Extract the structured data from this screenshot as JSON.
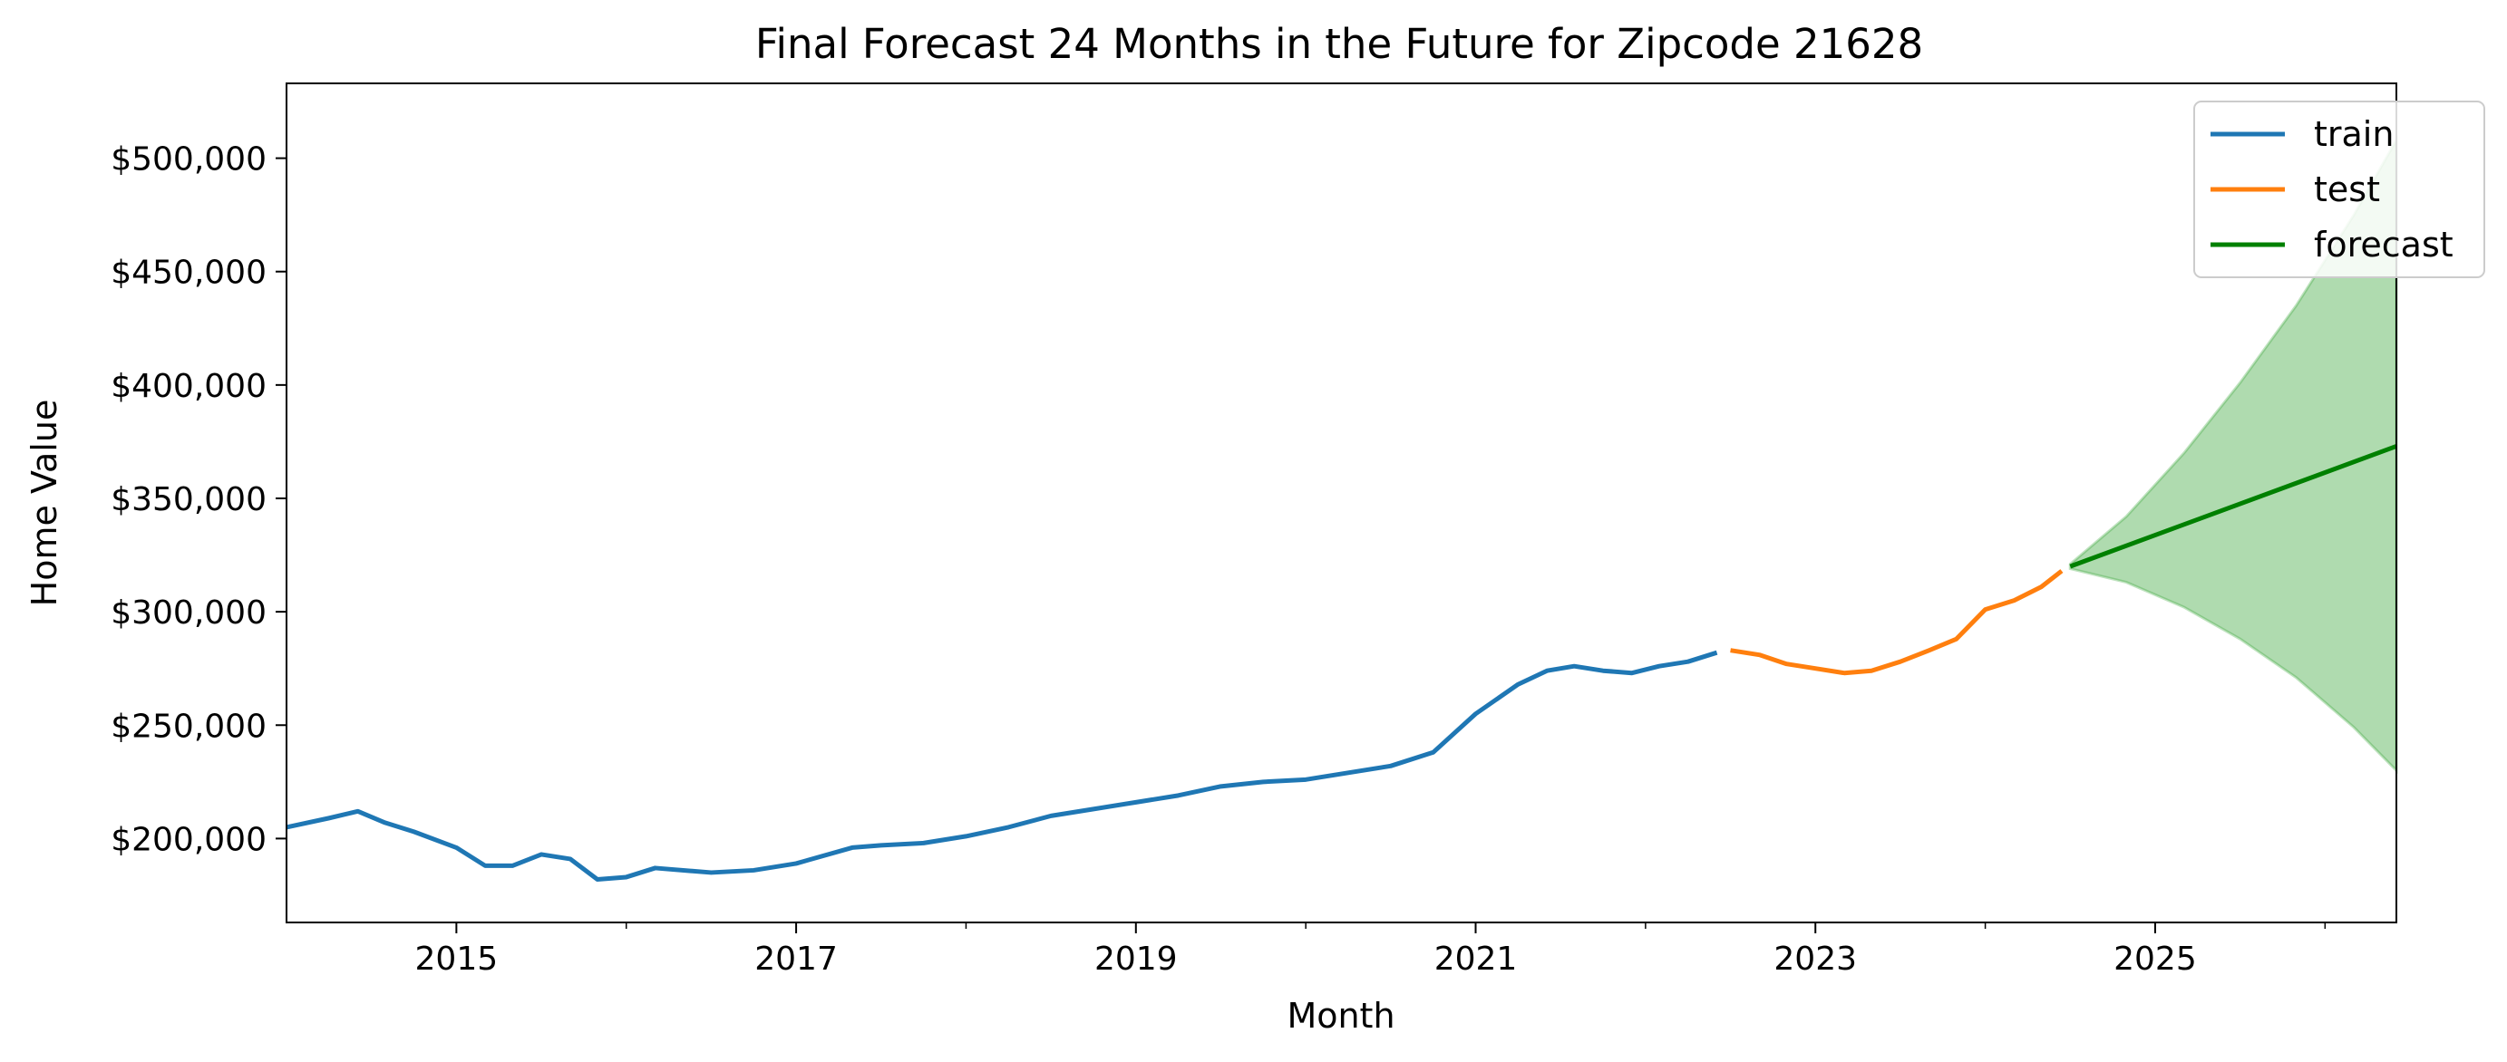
{
  "chart_data": {
    "type": "line",
    "title": "Final Forecast 24 Months in the Future for Zipcode 21628",
    "xlabel": "Month",
    "ylabel": "Home Value",
    "xlim": [
      2014.0,
      2026.42
    ],
    "ylim": [
      163000,
      533000
    ],
    "x_ticks": [
      {
        "value": 2015,
        "label": "2015"
      },
      {
        "value": 2017,
        "label": "2017"
      },
      {
        "value": 2019,
        "label": "2019"
      },
      {
        "value": 2021,
        "label": "2021"
      },
      {
        "value": 2023,
        "label": "2023"
      },
      {
        "value": 2025,
        "label": "2025"
      }
    ],
    "x_minor_ticks": [
      2016,
      2018,
      2020,
      2022,
      2024,
      2026
    ],
    "y_ticks": [
      {
        "value": 200000,
        "label": "$200,000"
      },
      {
        "value": 250000,
        "label": "$250,000"
      },
      {
        "value": 300000,
        "label": "$300,000"
      },
      {
        "value": 350000,
        "label": "$350,000"
      },
      {
        "value": 400000,
        "label": "$400,000"
      },
      {
        "value": 450000,
        "label": "$450,000"
      },
      {
        "value": 500000,
        "label": "$500,000"
      }
    ],
    "grid": false,
    "legend_position": "top-right",
    "series": [
      {
        "name": "train",
        "color": "#1f77b4",
        "x": [
          2014.0,
          2014.25,
          2014.42,
          2014.58,
          2014.75,
          2015.0,
          2015.17,
          2015.33,
          2015.5,
          2015.67,
          2015.83,
          2016.0,
          2016.17,
          2016.5,
          2016.75,
          2017.0,
          2017.33,
          2017.5,
          2017.75,
          2018.0,
          2018.25,
          2018.5,
          2018.75,
          2019.0,
          2019.25,
          2019.5,
          2019.75,
          2020.0,
          2020.25,
          2020.5,
          2020.75,
          2021.0,
          2021.25,
          2021.42,
          2021.58,
          2021.75,
          2021.92,
          2022.08,
          2022.25,
          2022.42
        ],
        "y": [
          205000,
          209000,
          212000,
          207000,
          203000,
          196000,
          188000,
          188000,
          193000,
          191000,
          182000,
          183000,
          187000,
          185000,
          186000,
          189000,
          196000,
          197000,
          198000,
          201000,
          205000,
          210000,
          213000,
          216000,
          219000,
          223000,
          225000,
          226000,
          229000,
          232000,
          238000,
          255000,
          268000,
          274000,
          276000,
          274000,
          273000,
          276000,
          278000,
          282000
        ]
      },
      {
        "name": "test",
        "color": "#ff7f0e",
        "x": [
          2022.5,
          2022.67,
          2022.83,
          2023.0,
          2023.17,
          2023.33,
          2023.5,
          2023.67,
          2023.83,
          2024.0,
          2024.17,
          2024.33,
          2024.45
        ],
        "y": [
          283000,
          281000,
          277000,
          275000,
          273000,
          274000,
          278000,
          283000,
          288000,
          301000,
          305000,
          311000,
          318000
        ]
      },
      {
        "name": "forecast",
        "color": "#008000",
        "x": [
          2024.5,
          2026.42
        ],
        "y": [
          320000,
          373000
        ]
      }
    ],
    "confidence_band": {
      "color": "#2ca02c",
      "x": [
        2024.5,
        2024.83,
        2025.17,
        2025.5,
        2025.83,
        2026.17,
        2026.42
      ],
      "upper": [
        321000,
        342000,
        370000,
        401000,
        435000,
        475000,
        508000
      ],
      "lower": [
        319000,
        313000,
        302000,
        288000,
        271000,
        249000,
        230000
      ]
    }
  }
}
